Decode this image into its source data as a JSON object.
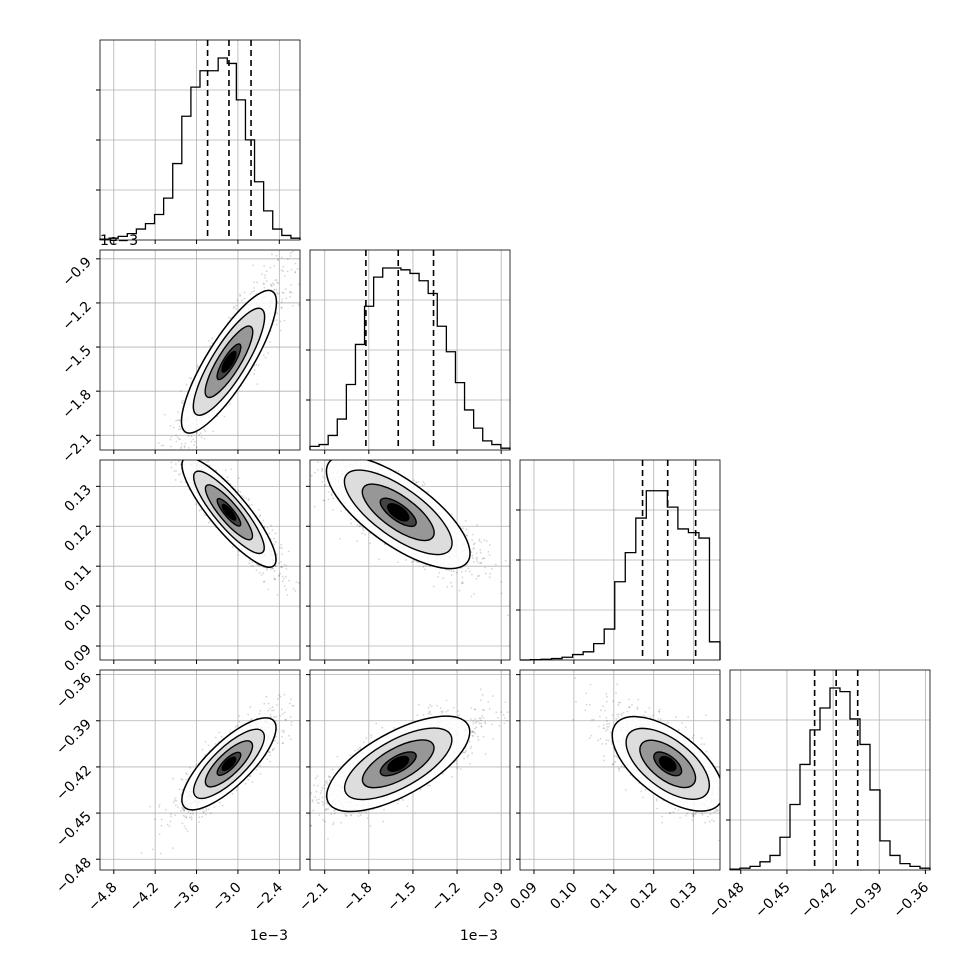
{
  "chart_data": {
    "type": "corner",
    "parameters": [
      {
        "key": "p0",
        "range": [
          -5.0,
          -2.1
        ],
        "ticks": [
          -4.8,
          -4.2,
          -3.6,
          -3.0,
          -2.4
        ],
        "tick_labels": [
          "−4.8",
          "−4.2",
          "−3.6",
          "−3.0",
          "−2.4"
        ],
        "offset_label": "1e−3",
        "scale": 0.001,
        "quantiles": [
          -3.44,
          -3.13,
          -2.81
        ],
        "hist": [
          0.005,
          0.01,
          0.02,
          0.035,
          0.06,
          0.09,
          0.14,
          0.23,
          0.42,
          0.68,
          0.84,
          0.93,
          0.93,
          1.0,
          0.97,
          0.77,
          0.55,
          0.32,
          0.16,
          0.06,
          0.025,
          0.01
        ],
        "mean": -3.13,
        "sigma": 0.32
      },
      {
        "key": "p1",
        "range": [
          -2.2,
          -0.84
        ],
        "ticks": [
          -2.1,
          -1.8,
          -1.5,
          -1.2,
          -0.9
        ],
        "tick_labels": [
          "−2.1",
          "−1.8",
          "−1.5",
          "−1.2",
          "−0.9"
        ],
        "offset_label": "1e−3",
        "scale": 0.001,
        "quantiles": [
          -1.82,
          -1.6,
          -1.36
        ],
        "hist": [
          0.02,
          0.03,
          0.08,
          0.17,
          0.36,
          0.58,
          0.79,
          0.95,
          1.0,
          1.0,
          0.99,
          0.97,
          0.93,
          0.86,
          0.68,
          0.54,
          0.37,
          0.22,
          0.12,
          0.05,
          0.03,
          0.01
        ],
        "mean": -1.6,
        "sigma": 0.23
      },
      {
        "key": "p2",
        "range": [
          0.0865,
          0.1366
        ],
        "ticks": [
          0.09,
          0.1,
          0.11,
          0.12,
          0.13
        ],
        "tick_labels": [
          "0.09",
          "0.10",
          "0.11",
          "0.12",
          "0.13"
        ],
        "quantiles": [
          0.1172,
          0.1235,
          0.1305
        ],
        "hist": [
          0.0,
          0.002,
          0.004,
          0.008,
          0.015,
          0.03,
          0.045,
          0.09,
          0.17,
          0.43,
          0.59,
          0.78,
          0.93,
          0.93,
          0.84,
          0.72,
          0.7,
          0.67,
          0.1
        ],
        "mean": 0.1235,
        "sigma": 0.0065
      },
      {
        "key": "p3",
        "range": [
          -0.487,
          -0.357
        ],
        "ticks": [
          -0.48,
          -0.45,
          -0.42,
          -0.39,
          -0.36
        ],
        "tick_labels": [
          "−0.48",
          "−0.45",
          "−0.42",
          "−0.39",
          "−0.36"
        ],
        "quantiles": [
          -0.432,
          -0.418,
          -0.404
        ],
        "hist": [
          0.005,
          0.01,
          0.02,
          0.045,
          0.08,
          0.18,
          0.36,
          0.58,
          0.77,
          0.89,
          1.0,
          0.98,
          0.83,
          0.69,
          0.44,
          0.16,
          0.08,
          0.035,
          0.02,
          0.01
        ],
        "mean": -0.418,
        "sigma": 0.014
      }
    ],
    "pairs": [
      {
        "x": 0,
        "y": 1,
        "rho": 0.88,
        "hist_rot": 0,
        "clip": []
      },
      {
        "x": 0,
        "y": 2,
        "rho": -0.9,
        "hist_rot": 0,
        "clip": []
      },
      {
        "x": 1,
        "y": 2,
        "rho": -0.8,
        "hist_rot": 0,
        "clip": []
      },
      {
        "x": 0,
        "y": 3,
        "rho": 0.84,
        "hist_rot": 0,
        "clip": []
      },
      {
        "x": 1,
        "y": 3,
        "rho": 0.75,
        "hist_rot": 0,
        "clip": []
      },
      {
        "x": 2,
        "y": 3,
        "rho": -0.7,
        "hist_rot": 0,
        "clip": []
      }
    ],
    "contour_levels_sigma": [
      0.5,
      1.0,
      1.5,
      2.0
    ],
    "grid": true
  }
}
